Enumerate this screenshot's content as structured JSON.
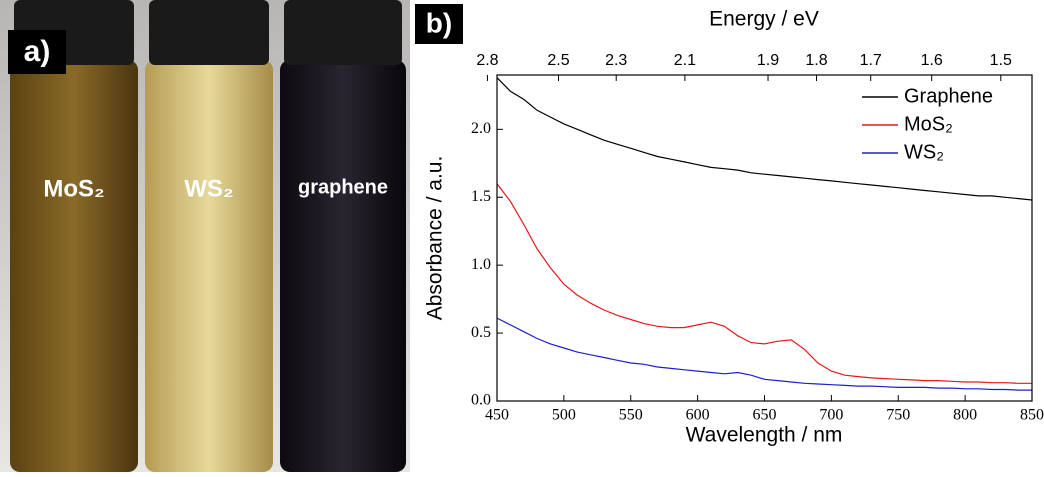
{
  "photo": {
    "label": "a)",
    "captions": [
      "MoS₂",
      "WS₂",
      "graphene"
    ]
  },
  "chart_data": {
    "type": "line",
    "title": "b)",
    "xlabel": "Wavelength / nm",
    "ylabel": "Absorbance / a.u.",
    "x2label": "Energy / eV",
    "x": [
      450,
      460,
      470,
      480,
      490,
      500,
      510,
      520,
      530,
      540,
      550,
      560,
      570,
      580,
      590,
      600,
      610,
      620,
      630,
      640,
      650,
      660,
      670,
      680,
      690,
      700,
      710,
      720,
      730,
      740,
      750,
      760,
      770,
      780,
      790,
      800,
      810,
      820,
      830,
      840,
      850
    ],
    "series": [
      {
        "name": "Graphene",
        "color": "#000000",
        "values": [
          2.38,
          2.28,
          2.22,
          2.14,
          2.09,
          2.04,
          2.0,
          1.96,
          1.92,
          1.89,
          1.86,
          1.83,
          1.8,
          1.78,
          1.76,
          1.74,
          1.72,
          1.71,
          1.7,
          1.68,
          1.67,
          1.66,
          1.65,
          1.64,
          1.63,
          1.62,
          1.61,
          1.6,
          1.59,
          1.58,
          1.57,
          1.56,
          1.55,
          1.54,
          1.53,
          1.52,
          1.51,
          1.51,
          1.5,
          1.49,
          1.48
        ]
      },
      {
        "name": "MoS₂",
        "color": "#e31a1c",
        "values": [
          1.6,
          1.47,
          1.3,
          1.12,
          0.98,
          0.86,
          0.78,
          0.72,
          0.67,
          0.63,
          0.6,
          0.57,
          0.55,
          0.54,
          0.54,
          0.56,
          0.58,
          0.55,
          0.48,
          0.43,
          0.42,
          0.44,
          0.45,
          0.38,
          0.28,
          0.22,
          0.19,
          0.18,
          0.17,
          0.165,
          0.16,
          0.155,
          0.15,
          0.15,
          0.145,
          0.14,
          0.14,
          0.135,
          0.135,
          0.13,
          0.13
        ]
      },
      {
        "name": "WS₂",
        "color": "#1f1fc8",
        "values": [
          0.61,
          0.56,
          0.51,
          0.46,
          0.42,
          0.39,
          0.36,
          0.34,
          0.32,
          0.3,
          0.28,
          0.27,
          0.25,
          0.24,
          0.23,
          0.22,
          0.21,
          0.2,
          0.21,
          0.19,
          0.16,
          0.15,
          0.14,
          0.13,
          0.125,
          0.12,
          0.115,
          0.11,
          0.11,
          0.105,
          0.1,
          0.1,
          0.1,
          0.095,
          0.095,
          0.09,
          0.09,
          0.085,
          0.085,
          0.08,
          0.08
        ]
      }
    ],
    "xlim": [
      450,
      850
    ],
    "xticks": [
      450,
      500,
      550,
      600,
      650,
      700,
      750,
      800,
      850
    ],
    "ylim": [
      0,
      2.4
    ],
    "yticks": [
      {
        "value": 0,
        "label": "0.0"
      },
      0.5,
      {
        "value": 1,
        "label": "1.0"
      },
      1.5,
      {
        "value": 2,
        "label": "2.0"
      }
    ],
    "x2ticks": [
      2.8,
      2.5,
      2.3,
      2.1,
      1.9,
      1.8,
      1.7,
      1.6,
      1.5
    ],
    "legend": "upper right",
    "grid": false
  }
}
